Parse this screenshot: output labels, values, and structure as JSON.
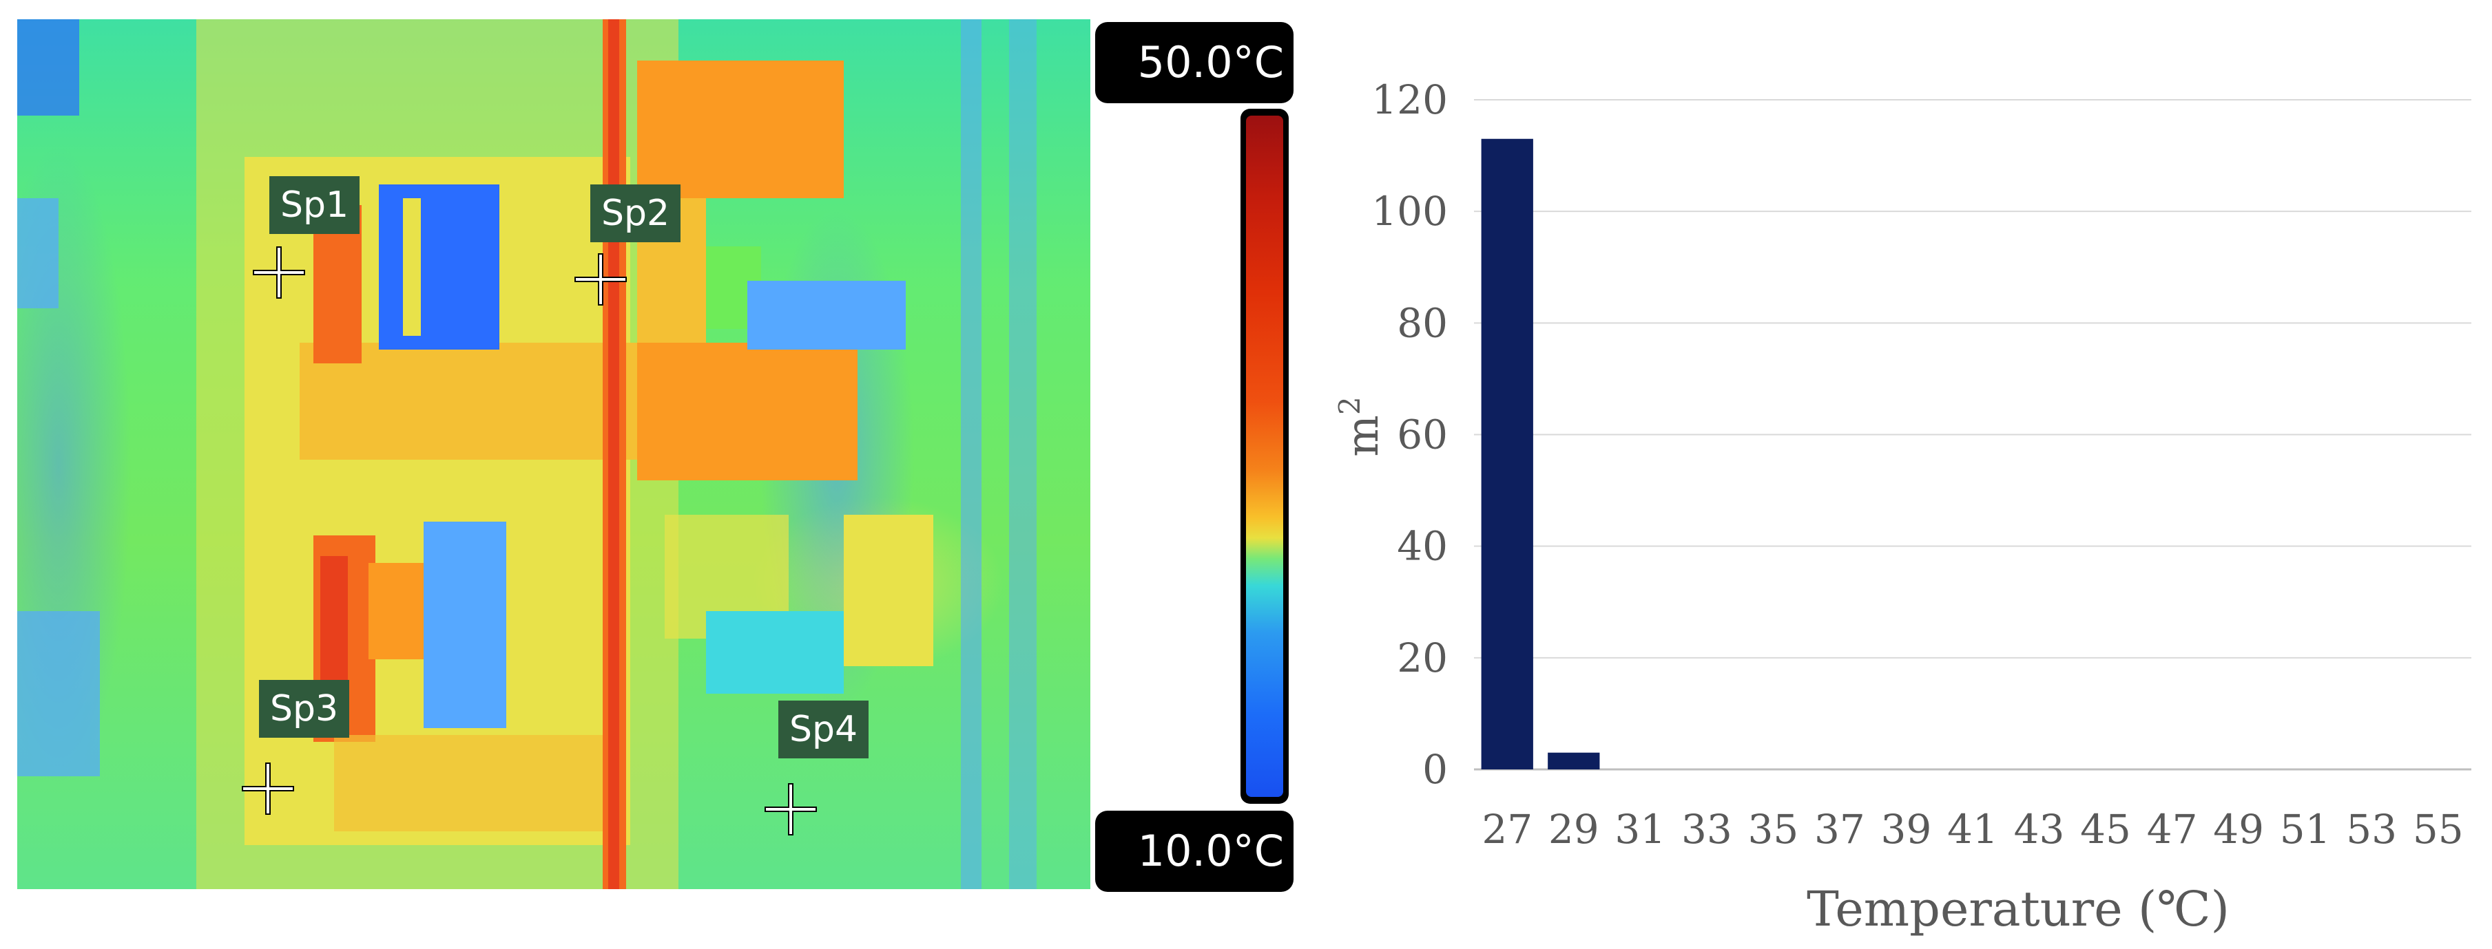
{
  "thermal": {
    "spots": [
      {
        "label": "Sp1"
      },
      {
        "label": "Sp2"
      },
      {
        "label": "Sp3"
      },
      {
        "label": "Sp4"
      }
    ],
    "scale_max": "50.0°C",
    "scale_min": "10.0°C",
    "palette": [
      "#9c1010",
      "#e03008",
      "#f5821a",
      "#e8e040",
      "#38d8d8",
      "#1c6cf8"
    ]
  },
  "chart_data": {
    "type": "bar",
    "categories": [
      "27",
      "29",
      "31",
      "33",
      "35",
      "37",
      "39",
      "41",
      "43",
      "45",
      "47",
      "49",
      "51",
      "53",
      "55"
    ],
    "values": [
      113,
      3,
      0,
      0,
      0,
      0,
      0,
      0,
      0,
      0,
      0,
      0,
      0,
      0,
      0
    ],
    "xlabel": "Temperature (℃)",
    "ylabel_base": "m",
    "ylabel_sup": "2",
    "ylim": [
      0,
      120
    ],
    "yticks": [
      "0",
      "20",
      "40",
      "60",
      "80",
      "100",
      "120"
    ],
    "grid": true,
    "bar_color": "#0d1f5e"
  }
}
